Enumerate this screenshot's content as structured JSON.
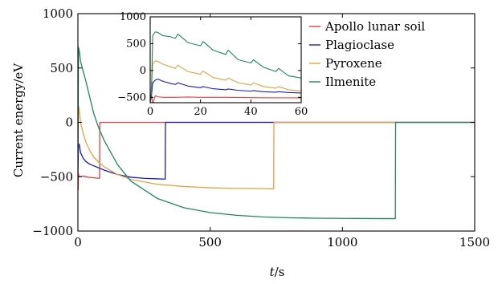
{
  "chart_data": {
    "type": "line",
    "xlabel_var": "t",
    "xlabel_unit": "/s",
    "ylabel": "Current energy/eV",
    "xlim": [
      0,
      1500
    ],
    "ylim": [
      -1000,
      1000
    ],
    "xticks": [
      0,
      500,
      1000,
      1500
    ],
    "yticks": [
      -1000,
      -500,
      0,
      500,
      1000
    ],
    "xtick_labels": [
      "0",
      "500",
      "1000",
      "1500"
    ],
    "ytick_labels": [
      "−1000",
      "−500",
      "0",
      "500",
      "1000"
    ],
    "grid": false,
    "legend": "top-right",
    "series": [
      {
        "name": "Apollo lunar soil",
        "color": "#e8403f",
        "x": [
          0,
          1,
          2,
          3,
          5,
          10,
          20,
          40,
          60,
          82,
          83,
          100,
          1500
        ],
        "y": [
          -450,
          -620,
          -470,
          -490,
          -500,
          -500,
          -495,
          -505,
          -510,
          -515,
          0,
          0,
          0
        ]
      },
      {
        "name": "Plagioclase",
        "color": "#1919d6",
        "x": [
          0,
          2,
          5,
          10,
          20,
          30,
          45,
          60,
          80,
          100,
          150,
          200,
          250,
          300,
          330,
          331,
          400,
          1500
        ],
        "y": [
          -470,
          -220,
          -200,
          -280,
          -330,
          -360,
          -385,
          -400,
          -420,
          -440,
          -480,
          -505,
          -515,
          -520,
          -522,
          0,
          0,
          0
        ]
      },
      {
        "name": "Pyroxene",
        "color": "#e8a23a",
        "x": [
          0,
          2,
          5,
          10,
          20,
          30,
          45,
          60,
          80,
          100,
          150,
          200,
          300,
          400,
          500,
          600,
          700,
          740,
          741,
          800,
          1500
        ],
        "y": [
          -300,
          150,
          120,
          0,
          -100,
          -180,
          -260,
          -320,
          -370,
          -410,
          -480,
          -525,
          -570,
          -590,
          -602,
          -608,
          -610,
          -612,
          0,
          0,
          0
        ]
      },
      {
        "name": "Ilmenite",
        "color": "#1b8a5a",
        "x": [
          0,
          2,
          5,
          10,
          20,
          30,
          45,
          60,
          80,
          100,
          150,
          200,
          300,
          400,
          500,
          600,
          700,
          800,
          900,
          1000,
          1100,
          1200,
          1201,
          1300,
          1500
        ],
        "y": [
          -400,
          690,
          660,
          560,
          470,
          380,
          230,
          80,
          -60,
          -170,
          -390,
          -540,
          -700,
          -785,
          -830,
          -855,
          -870,
          -878,
          -882,
          -884,
          -885,
          -886,
          0,
          0,
          0
        ]
      }
    ],
    "inset": {
      "type": "line",
      "xlim": [
        0,
        60
      ],
      "ylim": [
        -600,
        1000
      ],
      "xticks": [
        0,
        20,
        40,
        60
      ],
      "yticks": [
        -500,
        0,
        500,
        1000
      ],
      "xtick_labels": [
        "0",
        "20",
        "40",
        "60"
      ],
      "ytick_labels": [
        "−500",
        "0",
        "500",
        "1000"
      ],
      "series": [
        {
          "name": "Apollo lunar soil",
          "color": "#e8403f",
          "x": [
            0,
            0.5,
            1,
            2,
            3,
            5,
            10,
            15,
            20,
            30,
            40,
            50,
            60
          ],
          "y": [
            -600,
            -450,
            -620,
            -470,
            -490,
            -500,
            -500,
            -495,
            -500,
            -500,
            -505,
            -510,
            -510
          ]
        },
        {
          "name": "Plagioclase",
          "color": "#1919d6",
          "x": [
            0,
            0.5,
            1,
            2,
            3,
            5,
            8,
            10,
            11,
            15,
            20,
            21,
            25,
            30,
            31,
            35,
            40,
            41,
            45,
            50,
            51,
            55,
            60
          ],
          "y": [
            -600,
            -470,
            -230,
            -180,
            -160,
            -200,
            -240,
            -260,
            -230,
            -290,
            -320,
            -300,
            -340,
            -360,
            -345,
            -370,
            -385,
            -375,
            -395,
            -405,
            -395,
            -410,
            -420
          ]
        },
        {
          "name": "Pyroxene",
          "color": "#e8a23a",
          "x": [
            0,
            0.5,
            1,
            2,
            3,
            5,
            8,
            10,
            11,
            15,
            20,
            21,
            25,
            30,
            31,
            35,
            40,
            41,
            45,
            50,
            51,
            55,
            60
          ],
          "y": [
            -600,
            -300,
            120,
            180,
            170,
            120,
            70,
            40,
            100,
            -20,
            -70,
            -10,
            -130,
            -180,
            -140,
            -230,
            -270,
            -230,
            -300,
            -330,
            -300,
            -360,
            -380
          ]
        },
        {
          "name": "Ilmenite",
          "color": "#1b8a5a",
          "x": [
            0,
            0.5,
            1,
            2,
            3,
            5,
            8,
            10,
            11,
            15,
            20,
            21,
            25,
            30,
            31,
            35,
            40,
            41,
            45,
            50,
            51,
            55,
            60
          ],
          "y": [
            -600,
            -400,
            650,
            720,
            710,
            650,
            630,
            600,
            680,
            520,
            460,
            540,
            380,
            300,
            380,
            200,
            140,
            200,
            60,
            -20,
            40,
            -100,
            -140
          ]
        }
      ]
    }
  }
}
